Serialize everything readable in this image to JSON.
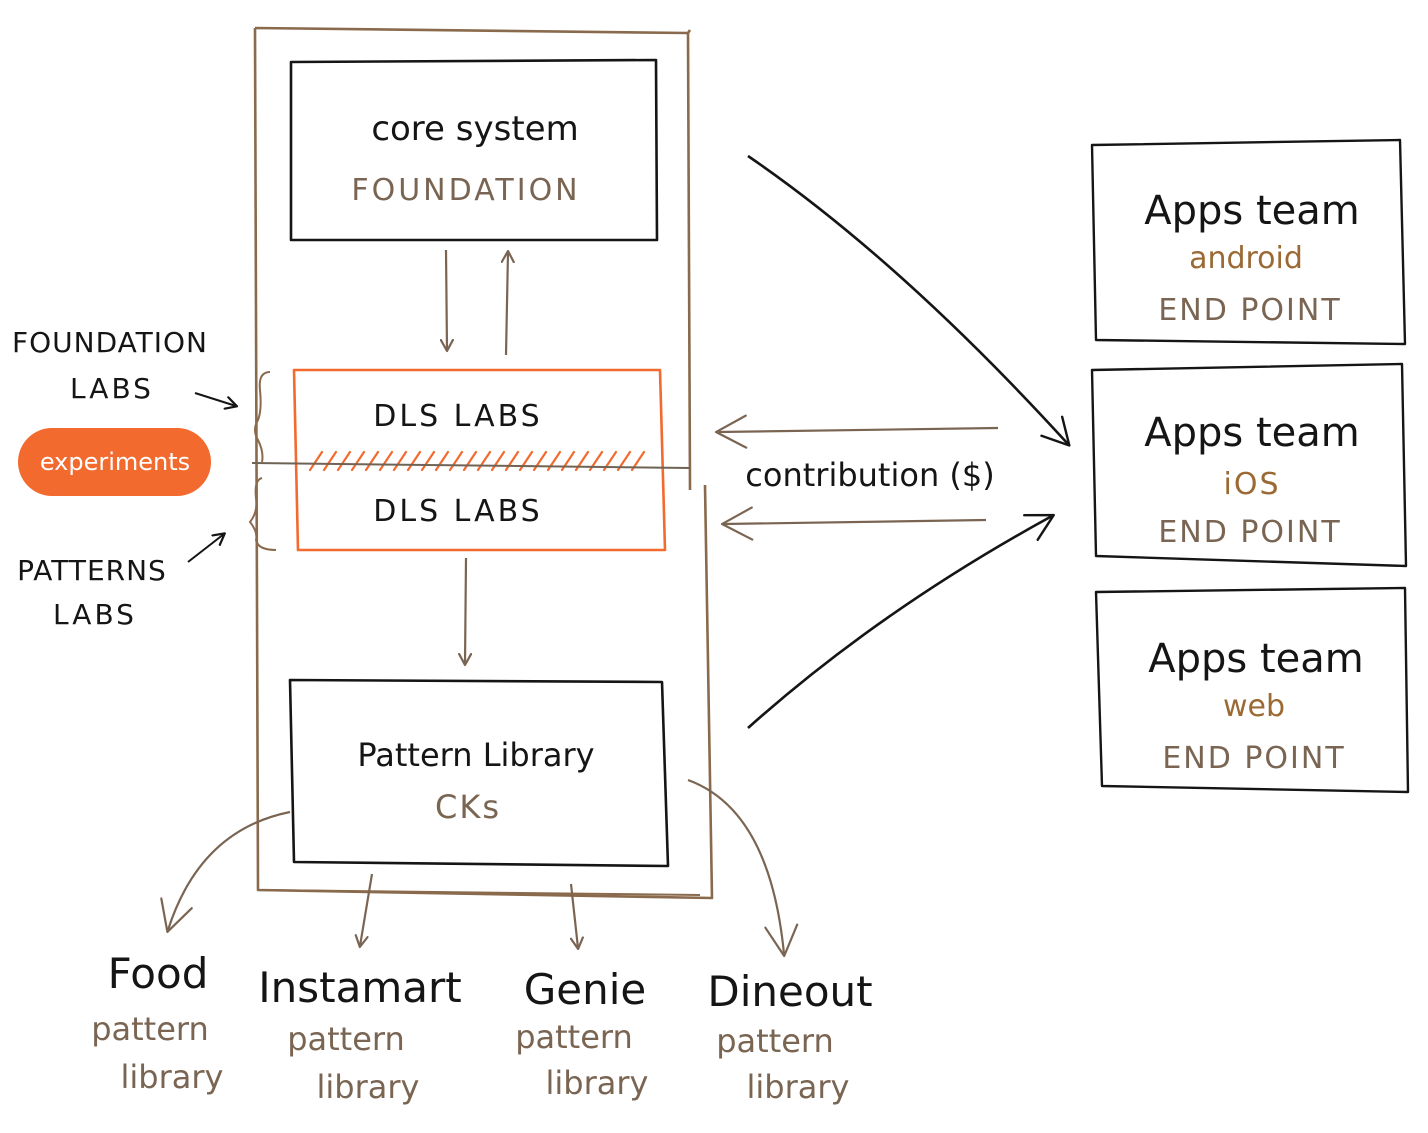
{
  "colors": {
    "ink": "#151515",
    "brown": "#7a6553",
    "brown_frame": "#8a6a4c",
    "accent_orange": "#f26a2e",
    "gold_text": "#9b6a34"
  },
  "core": {
    "title": "core system",
    "subtitle": "FOUNDATION"
  },
  "labs": {
    "top": "DLS LABS",
    "bottom": "DLS LABS"
  },
  "side_labels": {
    "foundation_line1": "FOUNDATION",
    "foundation_line2": "LABS",
    "experiments": "experiments",
    "patterns_line1": "PATTERNS",
    "patterns_line2": "LABS"
  },
  "pattern": {
    "title": "Pattern Library",
    "subtitle": "CKs"
  },
  "contribution": "contribution ($)",
  "apps": [
    {
      "title": "Apps team",
      "platform": "android",
      "endpoint": "END POINT"
    },
    {
      "title": "Apps team",
      "platform": "iOS",
      "endpoint": "END POINT"
    },
    {
      "title": "Apps team",
      "platform": "web",
      "endpoint": "END POINT"
    }
  ],
  "libraries": [
    {
      "name": "Food",
      "line1": "pattern",
      "line2": "library"
    },
    {
      "name": "Instamart",
      "line1": "pattern",
      "line2": "library"
    },
    {
      "name": "Genie",
      "line1": "pattern",
      "line2": "library"
    },
    {
      "name": "Dineout",
      "line1": "pattern",
      "line2": "library"
    }
  ]
}
